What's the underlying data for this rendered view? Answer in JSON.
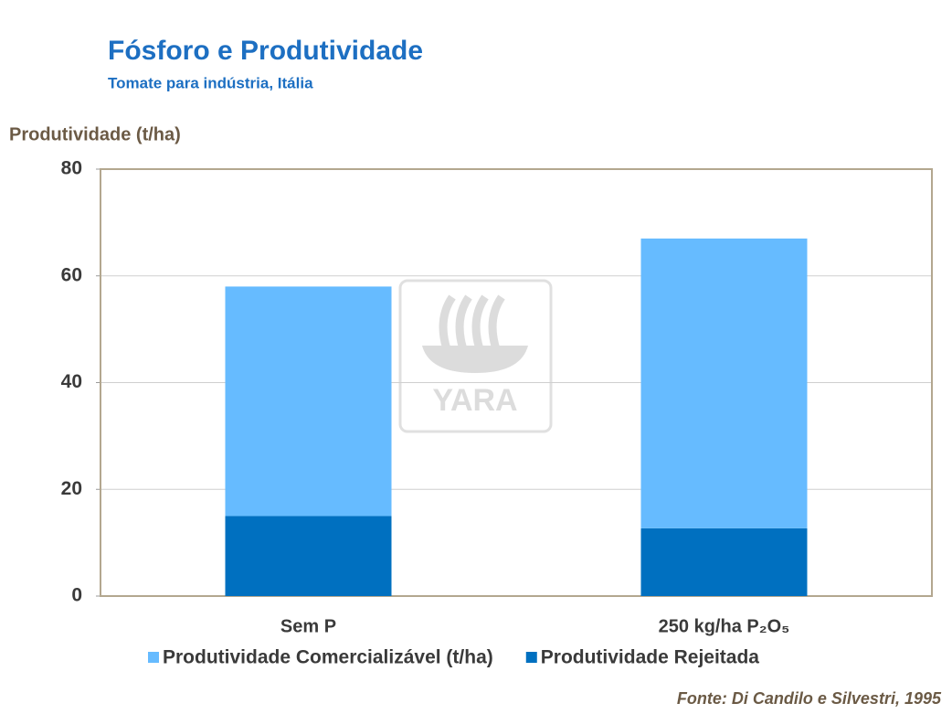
{
  "chart_data": {
    "type": "stacked_bar",
    "title": "Fósforo e Produtividade",
    "subtitle": "Tomate para indústria, Itália",
    "y_label": "Produtividade (t/ha)",
    "source": "Fonte: Di Candilo e Silvestri, 1995",
    "watermark": "YARA",
    "categories": [
      "Sem P",
      "250 kg/ha  P₂O₅"
    ],
    "series": [
      {
        "name": "Produtividade Comercializável (t/ha)",
        "color": "#66bbff",
        "values": [
          43,
          54.3
        ]
      },
      {
        "name": "Produtividade Rejeitada",
        "color": "#0070c0",
        "values": [
          15,
          12.7
        ]
      }
    ],
    "ylim": [
      0,
      80
    ],
    "yticks": [
      0,
      20,
      40,
      60,
      80
    ],
    "grid": true,
    "legend": "bottom"
  }
}
